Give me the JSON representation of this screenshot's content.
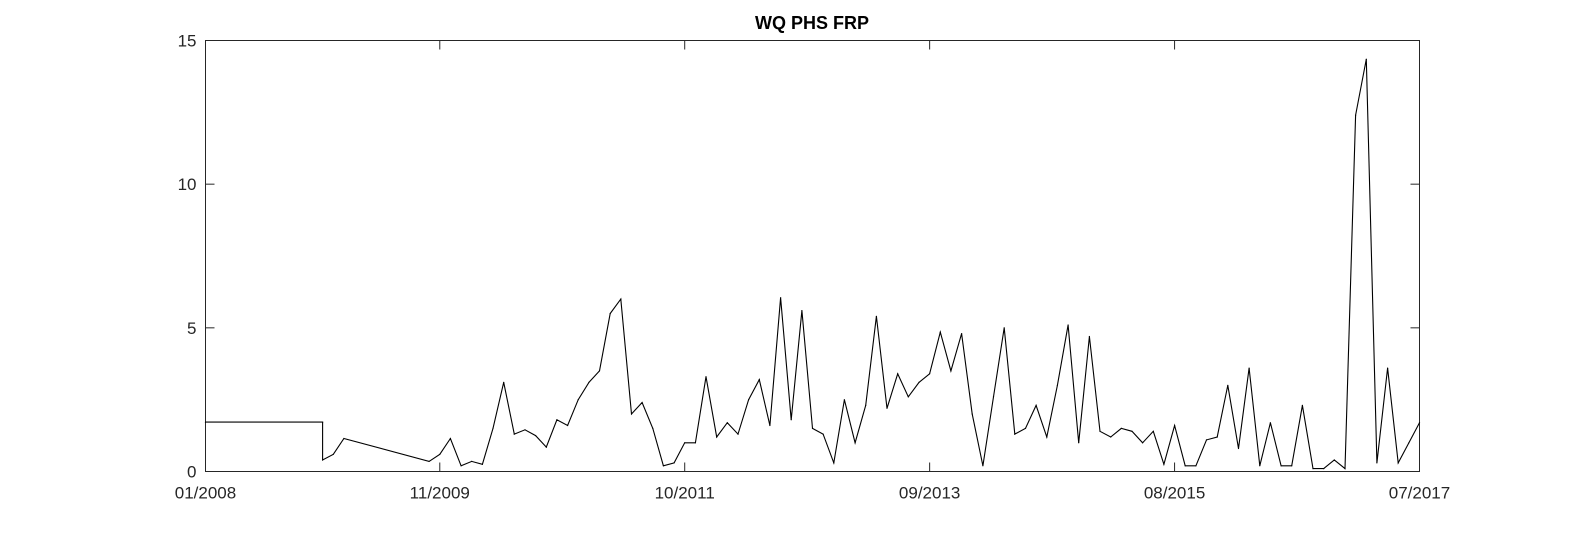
{
  "chart_data": {
    "type": "line",
    "title": "WQ PHS FRP",
    "xlabel": "",
    "ylabel": "",
    "x_ticks": [
      "01/2008",
      "11/2009",
      "10/2011",
      "09/2013",
      "08/2015",
      "07/2017"
    ],
    "y_ticks": [
      "0",
      "5",
      "10",
      "15"
    ],
    "xlim": [
      "2008-01",
      "2017-07"
    ],
    "ylim": [
      0,
      15
    ],
    "grid": false,
    "colors": {
      "line": "#000000",
      "axes": "#262626",
      "background": "#ffffff"
    },
    "series": [
      {
        "points": [
          [
            "2008-01",
            1.72
          ],
          [
            "2008-12",
            1.72
          ],
          [
            "2008-12",
            0.4
          ],
          [
            "2009-01",
            0.6
          ],
          [
            "2009-02",
            1.15
          ],
          [
            "2009-10",
            0.35
          ],
          [
            "2009-11",
            0.6
          ],
          [
            "2009-12",
            1.15
          ],
          [
            "2010-01",
            0.2
          ],
          [
            "2010-02",
            0.35
          ],
          [
            "2010-03",
            0.25
          ],
          [
            "2010-04",
            1.5
          ],
          [
            "2010-05",
            3.1
          ],
          [
            "2010-06",
            1.3
          ],
          [
            "2010-07",
            1.45
          ],
          [
            "2010-08",
            1.25
          ],
          [
            "2010-09",
            0.85
          ],
          [
            "2010-10",
            1.8
          ],
          [
            "2010-11",
            1.6
          ],
          [
            "2010-12",
            2.5
          ],
          [
            "2011-01",
            3.1
          ],
          [
            "2011-02",
            3.5
          ],
          [
            "2011-03",
            5.5
          ],
          [
            "2011-04",
            6.0
          ],
          [
            "2011-05",
            2.0
          ],
          [
            "2011-06",
            2.4
          ],
          [
            "2011-07",
            1.5
          ],
          [
            "2011-08",
            0.2
          ],
          [
            "2011-09",
            0.3
          ],
          [
            "2011-10",
            1.0
          ],
          [
            "2011-11",
            1.0
          ],
          [
            "2011-12",
            3.3
          ],
          [
            "2012-01",
            1.2
          ],
          [
            "2012-02",
            1.7
          ],
          [
            "2012-03",
            1.3
          ],
          [
            "2012-04",
            2.5
          ],
          [
            "2012-05",
            3.2
          ],
          [
            "2012-06",
            1.6
          ],
          [
            "2012-07",
            6.05
          ],
          [
            "2012-08",
            1.8
          ],
          [
            "2012-09",
            5.6
          ],
          [
            "2012-10",
            1.5
          ],
          [
            "2012-11",
            1.3
          ],
          [
            "2012-12",
            0.3
          ],
          [
            "2013-01",
            2.5
          ],
          [
            "2013-02",
            1.0
          ],
          [
            "2013-03",
            2.3
          ],
          [
            "2013-04",
            5.4
          ],
          [
            "2013-05",
            2.2
          ],
          [
            "2013-06",
            3.4
          ],
          [
            "2013-07",
            2.6
          ],
          [
            "2013-08",
            3.1
          ],
          [
            "2013-09",
            3.4
          ],
          [
            "2013-10",
            4.85
          ],
          [
            "2013-11",
            3.5
          ],
          [
            "2013-12",
            4.8
          ],
          [
            "2014-01",
            2.0
          ],
          [
            "2014-02",
            0.2
          ],
          [
            "2014-03",
            2.6
          ],
          [
            "2014-04",
            5.0
          ],
          [
            "2014-05",
            1.3
          ],
          [
            "2014-06",
            1.5
          ],
          [
            "2014-07",
            2.3
          ],
          [
            "2014-08",
            1.2
          ],
          [
            "2014-09",
            3.0
          ],
          [
            "2014-10",
            5.1
          ],
          [
            "2014-11",
            1.0
          ],
          [
            "2014-12",
            4.7
          ],
          [
            "2015-01",
            1.4
          ],
          [
            "2015-02",
            1.2
          ],
          [
            "2015-03",
            1.5
          ],
          [
            "2015-04",
            1.4
          ],
          [
            "2015-05",
            1.0
          ],
          [
            "2015-06",
            1.4
          ],
          [
            "2015-07",
            0.25
          ],
          [
            "2015-08",
            1.6
          ],
          [
            "2015-09",
            0.2
          ],
          [
            "2015-10",
            0.2
          ],
          [
            "2015-11",
            1.1
          ],
          [
            "2015-12",
            1.2
          ],
          [
            "2016-01",
            3.0
          ],
          [
            "2016-02",
            0.8
          ],
          [
            "2016-03",
            3.6
          ],
          [
            "2016-04",
            0.2
          ],
          [
            "2016-05",
            1.7
          ],
          [
            "2016-06",
            0.2
          ],
          [
            "2016-07",
            0.2
          ],
          [
            "2016-08",
            2.3
          ],
          [
            "2016-09",
            0.1
          ],
          [
            "2016-10",
            0.1
          ],
          [
            "2016-11",
            0.4
          ],
          [
            "2016-12",
            0.1
          ],
          [
            "2017-01",
            12.4
          ],
          [
            "2017-02",
            14.35
          ],
          [
            "2017-03",
            0.3
          ],
          [
            "2017-04",
            3.6
          ],
          [
            "2017-05",
            0.3
          ],
          [
            "2017-06",
            1.0
          ],
          [
            "2017-07",
            1.7
          ]
        ]
      }
    ]
  }
}
